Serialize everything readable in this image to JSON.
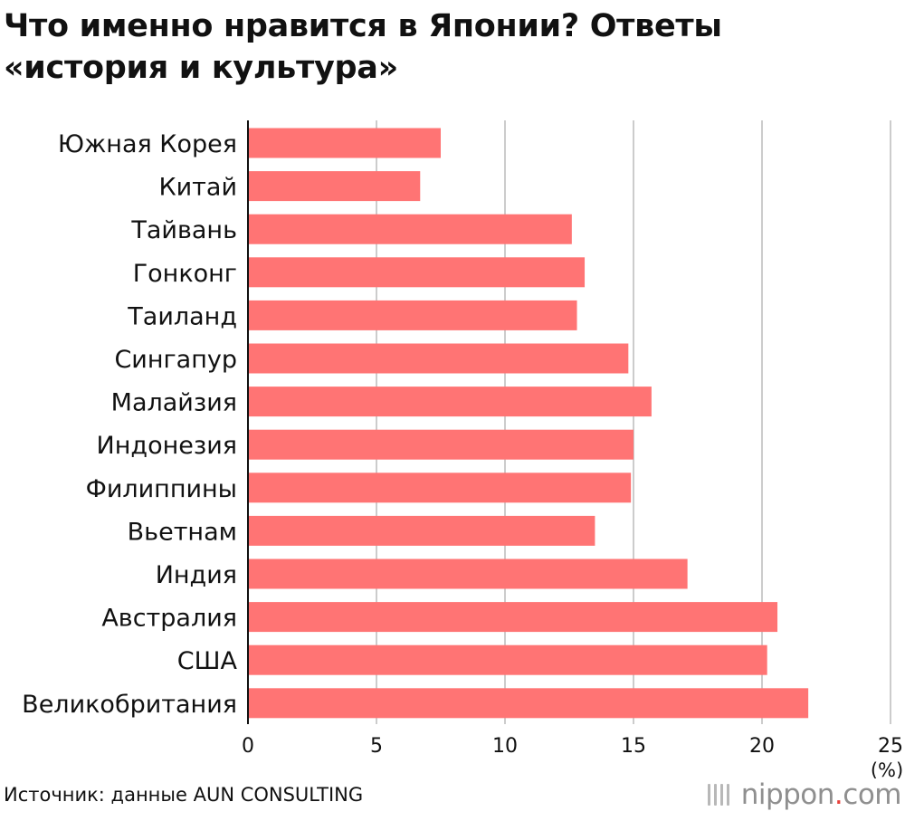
{
  "title_lines": [
    "Что именно нравится в Японии? Ответы",
    "«история и культура»"
  ],
  "source": "Источник: данные AUN CONSULTING",
  "logo": {
    "brand": "nippon",
    "dot": ".",
    "tld": "com",
    "icon": "nippon-logo-icon"
  },
  "colors": {
    "bar": "#ff7474",
    "grid": "#cccccc",
    "axis": "#111111"
  },
  "chart_data": {
    "type": "bar",
    "orientation": "horizontal",
    "categories": [
      "Южная Корея",
      "Китай",
      "Тайвань",
      "Гонконг",
      "Таиланд",
      "Сингапур",
      "Малайзия",
      "Индонезия",
      "Филиппины",
      "Вьетнам",
      "Индия",
      "Австралия",
      "США",
      "Великобритания"
    ],
    "values": [
      7.5,
      6.7,
      12.6,
      13.1,
      12.8,
      14.8,
      15.7,
      15.0,
      14.9,
      13.5,
      17.1,
      20.6,
      20.2,
      21.8
    ],
    "xlim": [
      0,
      25
    ],
    "xticks": [
      0,
      5,
      10,
      15,
      20,
      25
    ],
    "xunit": "(%)",
    "grid": true
  }
}
